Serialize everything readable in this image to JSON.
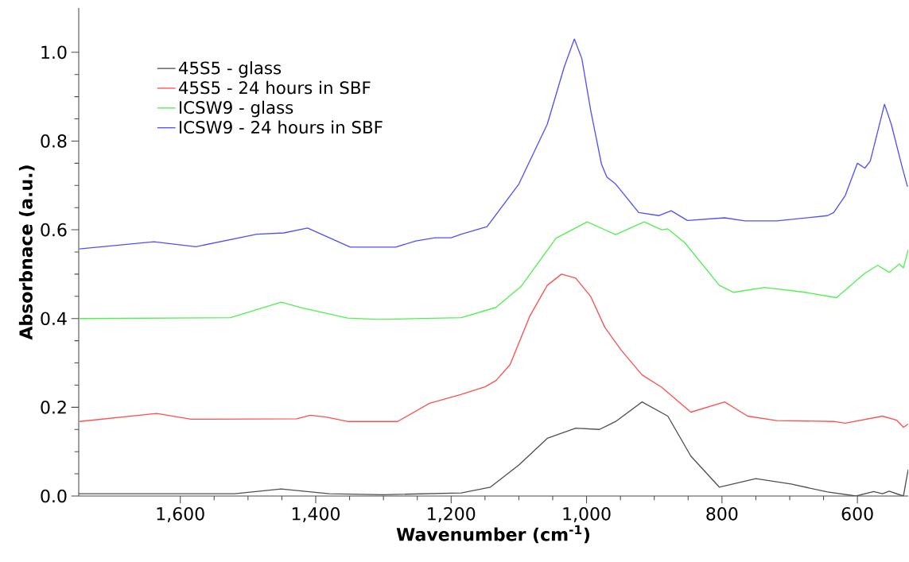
{
  "chart_data": {
    "type": "line",
    "xlabel": "Wavenumber (cm$^{-1}$)",
    "ylabel": "Absorbnace (a.u.)",
    "xlim": [
      1750,
      525
    ],
    "ylim": [
      0,
      1.1
    ],
    "xticks": [
      {
        "value": 1600,
        "label": "1,600"
      },
      {
        "value": 1400,
        "label": "1,400"
      },
      {
        "value": 1200,
        "label": "1,200"
      },
      {
        "value": 1000,
        "label": "1,000"
      },
      800,
      600
    ],
    "yticks": [
      {
        "value": 0,
        "label": "0.0"
      },
      0.2,
      0.4,
      0.6,
      0.8,
      {
        "value": 1,
        "label": "1.0"
      }
    ],
    "legend": "top left",
    "grid": false,
    "marker": "none",
    "line_style": "solid",
    "series": [
      {
        "name": "45S5 - glass",
        "color": "#505050",
        "x": [
          1750,
          1520,
          1451,
          1380,
          1300,
          1185,
          1142,
          1100,
          1058,
          1016,
          981,
          957,
          918,
          880,
          846,
          804,
          750,
          698,
          644,
          602,
          576,
          563,
          553,
          540,
          532,
          525
        ],
        "values": [
          0.005,
          0.005,
          0.016,
          0.005,
          0.003,
          0.007,
          0.02,
          0.07,
          0.13,
          0.153,
          0.15,
          0.168,
          0.212,
          0.18,
          0.09,
          0.02,
          0.039,
          0.027,
          0.009,
          0.0,
          0.01,
          0.005,
          0.011,
          0.004,
          0.0,
          0.06
        ]
      },
      {
        "name": "45S5 - 24 hours in SBF",
        "color": "#ff5050",
        "x": [
          1749,
          1635,
          1584,
          1428,
          1408,
          1385,
          1353,
          1279,
          1232,
          1185,
          1150,
          1134,
          1113,
          1084,
          1058,
          1037,
          1016,
          994,
          973,
          949,
          918,
          889,
          846,
          796,
          762,
          719,
          635,
          618,
          563,
          542,
          532,
          525
        ],
        "values": [
          0.168,
          0.186,
          0.173,
          0.174,
          0.182,
          0.178,
          0.168,
          0.168,
          0.209,
          0.229,
          0.246,
          0.26,
          0.296,
          0.405,
          0.475,
          0.5,
          0.491,
          0.45,
          0.38,
          0.329,
          0.273,
          0.245,
          0.189,
          0.212,
          0.18,
          0.17,
          0.168,
          0.164,
          0.18,
          0.171,
          0.155,
          0.162
        ]
      },
      {
        "name": "ICSW9 - glass",
        "color": "#50f050",
        "x": [
          1749,
          1526,
          1451,
          1420,
          1353,
          1306,
          1185,
          1134,
          1097,
          1045,
          999,
          957,
          915,
          889,
          880,
          855,
          804,
          783,
          737,
          677,
          631,
          589,
          570,
          553,
          538,
          532,
          525
        ],
        "values": [
          0.4,
          0.402,
          0.437,
          0.424,
          0.401,
          0.398,
          0.402,
          0.425,
          0.472,
          0.581,
          0.618,
          0.589,
          0.618,
          0.6,
          0.602,
          0.571,
          0.475,
          0.459,
          0.47,
          0.459,
          0.447,
          0.502,
          0.52,
          0.504,
          0.523,
          0.514,
          0.555
        ]
      },
      {
        "name": "ICSW9 - 24 hours in SBF",
        "color": "#5050ff",
        "x": [
          1749,
          1639,
          1577,
          1487,
          1447,
          1412,
          1349,
          1282,
          1252,
          1224,
          1200,
          1185,
          1147,
          1100,
          1058,
          1033,
          1018,
          1007,
          994,
          978,
          970,
          957,
          923,
          893,
          875,
          851,
          796,
          766,
          719,
          644,
          635,
          618,
          600,
          589,
          581,
          560,
          550,
          534,
          526
        ],
        "values": [
          0.557,
          0.573,
          0.562,
          0.59,
          0.593,
          0.604,
          0.561,
          0.561,
          0.575,
          0.582,
          0.582,
          0.59,
          0.607,
          0.703,
          0.838,
          0.967,
          1.03,
          0.986,
          0.87,
          0.748,
          0.719,
          0.703,
          0.639,
          0.632,
          0.643,
          0.621,
          0.627,
          0.62,
          0.62,
          0.632,
          0.639,
          0.677,
          0.75,
          0.739,
          0.755,
          0.883,
          0.838,
          0.742,
          0.697
        ]
      }
    ]
  }
}
